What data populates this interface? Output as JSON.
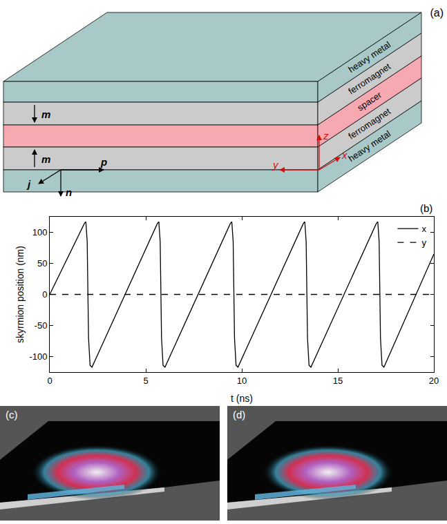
{
  "diagram": {
    "label": "(a)",
    "layers": [
      {
        "label": "heavy metal",
        "color": "#a9c9c8"
      },
      {
        "label": "ferromagnet",
        "color": "#cbcbcb"
      },
      {
        "label": "spacer",
        "color": "#f6a9b1"
      },
      {
        "label": "ferromagnet",
        "color": "#cbcbcb"
      },
      {
        "label": "heavy metal",
        "color": "#a9c9c8"
      }
    ],
    "vectors": [
      {
        "label": "m"
      },
      {
        "label": "m"
      },
      {
        "label": "p"
      },
      {
        "label": "j"
      },
      {
        "label": "n"
      }
    ],
    "axes": [
      "z",
      "x",
      "y"
    ]
  },
  "chart_data": {
    "type": "line",
    "annotations": [
      "(b)"
    ],
    "x_label": "t (ns)",
    "y_label": "skyrmion position (nm)",
    "x": [
      0,
      1.8,
      1.88,
      1.95,
      2.02,
      2.1,
      2.2,
      5.6,
      5.68,
      5.75,
      5.82,
      5.9,
      6.0,
      9.4,
      9.48,
      9.55,
      9.62,
      9.7,
      9.8,
      13.2,
      13.28,
      13.35,
      13.42,
      13.5,
      13.6,
      17.0,
      17.08,
      17.15,
      17.22,
      17.3,
      17.4,
      20
    ],
    "series": [
      {
        "name": "x",
        "color": "#000000",
        "line_style": "solid",
        "values": [
          0,
          114,
          117,
          85,
          -70,
          -114,
          -117,
          114,
          117,
          85,
          -70,
          -114,
          -117,
          114,
          117,
          85,
          -70,
          -114,
          -117,
          114,
          117,
          85,
          -70,
          -114,
          -117,
          114,
          117,
          85,
          -70,
          -114,
          -117,
          65
        ]
      },
      {
        "name": "y",
        "color": "#000000",
        "line_style": "dash",
        "values": [
          0,
          0,
          0,
          0,
          0,
          0,
          0,
          0,
          0,
          0,
          0,
          0,
          0,
          0,
          0,
          0,
          0,
          0,
          0,
          0,
          0,
          0,
          0,
          0,
          0,
          0,
          0,
          0,
          0,
          0,
          0,
          0
        ]
      }
    ],
    "xlim": [
      0,
      20
    ],
    "xticks": [
      0,
      5,
      10,
      15,
      20
    ],
    "ylim": [
      -125,
      125
    ],
    "yticks": [
      -100,
      -50,
      0,
      50,
      100
    ],
    "grid": false,
    "legend": "top right"
  },
  "images": [
    {
      "label": "(c)"
    },
    {
      "label": "(d)"
    }
  ]
}
